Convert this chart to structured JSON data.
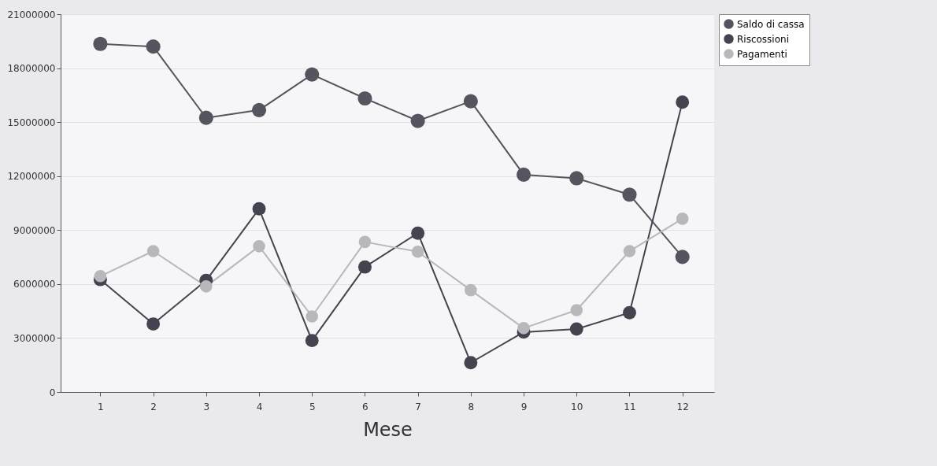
{
  "chart_data": {
    "type": "line",
    "xlabel": "Mese",
    "x": [
      1,
      2,
      3,
      4,
      5,
      6,
      7,
      8,
      9,
      10,
      11,
      12
    ],
    "xlim": [
      0.25,
      12.6
    ],
    "xticks": [
      1,
      2,
      3,
      4,
      5,
      6,
      7,
      8,
      9,
      10,
      11,
      12
    ],
    "series": [
      {
        "name": "Saldo di cassa",
        "color": "#55555f",
        "values": [
          19350000,
          19200000,
          15240000,
          15670000,
          17650000,
          16320000,
          15070000,
          16160000,
          12080000,
          11880000,
          10970000,
          7510000
        ]
      },
      {
        "name": "Riscossioni",
        "color": "#444450",
        "values": [
          6250000,
          3780000,
          6200000,
          10180000,
          2860000,
          6950000,
          8830000,
          1630000,
          3330000,
          3500000,
          4410000,
          16110000
        ]
      },
      {
        "name": "Pagamenti",
        "color": "#b8b8bc",
        "values": [
          6440000,
          7830000,
          5870000,
          8100000,
          4200000,
          8340000,
          7800000,
          5660000,
          3550000,
          4550000,
          7830000,
          9630000
        ]
      }
    ],
    "ylim": [
      0,
      21000000
    ],
    "yticks": [
      0,
      3000000,
      6000000,
      9000000,
      12000000,
      15000000,
      18000000,
      21000000
    ],
    "grid": "y",
    "legend": "top right",
    "marker": "circle"
  }
}
